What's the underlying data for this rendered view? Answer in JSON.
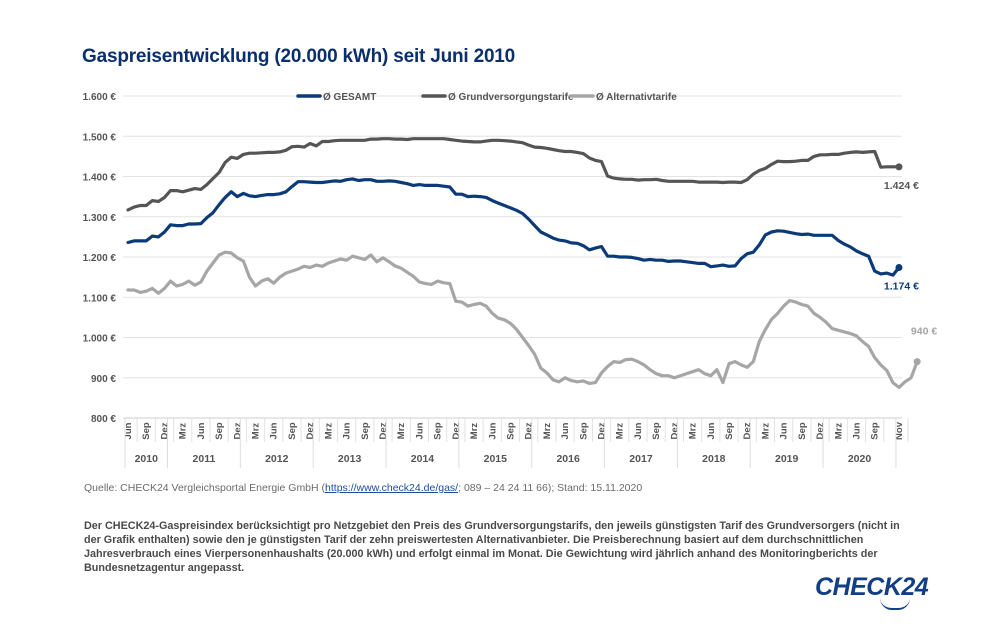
{
  "header": {
    "title": "Gaspreisentwicklung (20.000 kWh) seit Juni 2010"
  },
  "footer": {
    "source_prefix": "Quelle: CHECK24 Vergleichsportal Energie GmbH (",
    "source_link": "https://www.check24.de/gas/",
    "source_suffix": "; 089 – 24 24 11 66); Stand: 15.11.2020",
    "description": "Der CHECK24-Gaspreisindex berücksichtigt pro Netzgebiet den Preis des Grundversorgungstarifs, den jeweils günstigsten Tarif des Grundversorgers (nicht in der Grafik enthalten) sowie den je günstigsten Tarif der zehn preiswertesten Alternativanbieter. Die Preisberechnung basiert auf dem durchschnittlichen Jahresverbrauch eines Vierpersonenhaushalts (20.000 kWh) und erfolgt einmal im Monat. Die Gewichtung wird jährlich anhand des Monitoringberichts der Bundesnetzagentur angepasst.",
    "logo": "CHECK24"
  },
  "chart_data": {
    "type": "line",
    "title": "Gaspreisentwicklung (20.000 kWh) seit Juni 2010",
    "xlabel": "",
    "ylabel": "",
    "ylim": [
      800,
      1600
    ],
    "yticks": [
      800,
      900,
      1000,
      1100,
      1200,
      1300,
      1400,
      1500,
      1600
    ],
    "ytick_labels": [
      "800 €",
      "900 €",
      "1.000 €",
      "1.100 €",
      "1.200 €",
      "1.300 €",
      "1.400 €",
      "1.500 €",
      "1.600 €"
    ],
    "grid": true,
    "legend_position": "top-center",
    "x_start": "2010-06",
    "x_end": "2020-11",
    "month_tick_labels": [
      "Jun",
      "Sep",
      "Dez",
      "Mrz",
      "Jun",
      "Sep",
      "Dez",
      "Mrz",
      "Jun",
      "Sep",
      "Dez",
      "Mrz",
      "Jun",
      "Sep",
      "Dez",
      "Mrz",
      "Jun",
      "Sep",
      "Dez",
      "Mrz",
      "Jun",
      "Sep",
      "Dez",
      "Mrz",
      "Jun",
      "Sep",
      "Dez",
      "Mrz",
      "Jun",
      "Sep",
      "Dez",
      "Mrz",
      "Jun",
      "Sep",
      "Dez",
      "Mrz",
      "Jun",
      "Sep",
      "Dez",
      "Mrz",
      "Jun",
      "Sep",
      "Nov"
    ],
    "year_labels": [
      "2010",
      "2011",
      "2012",
      "2013",
      "2014",
      "2015",
      "2016",
      "2017",
      "2018",
      "2019",
      "2020"
    ],
    "series": [
      {
        "name": "Ø GESAMT",
        "color": "#0b3a78",
        "end_label": "1.174 €",
        "values": [
          1236,
          1240,
          1240,
          1240,
          1252,
          1250,
          1262,
          1280,
          1278,
          1278,
          1282,
          1282,
          1283,
          1298,
          1310,
          1330,
          1348,
          1362,
          1350,
          1358,
          1352,
          1350,
          1353,
          1355,
          1355,
          1357,
          1362,
          1375,
          1387,
          1387,
          1386,
          1385,
          1385,
          1387,
          1389,
          1388,
          1392,
          1394,
          1390,
          1392,
          1392,
          1388,
          1388,
          1389,
          1388,
          1385,
          1382,
          1378,
          1380,
          1378,
          1378,
          1378,
          1376,
          1374,
          1356,
          1356,
          1350,
          1351,
          1350,
          1348,
          1340,
          1334,
          1328,
          1322,
          1316,
          1308,
          1294,
          1278,
          1262,
          1255,
          1247,
          1242,
          1240,
          1235,
          1234,
          1228,
          1218,
          1222,
          1226,
          1202,
          1202,
          1200,
          1200,
          1199,
          1196,
          1192,
          1194,
          1192,
          1192,
          1189,
          1190,
          1190,
          1188,
          1186,
          1184,
          1184,
          1176,
          1178,
          1180,
          1177,
          1178,
          1196,
          1208,
          1212,
          1230,
          1255,
          1262,
          1265,
          1264,
          1261,
          1258,
          1256,
          1257,
          1254,
          1254,
          1254,
          1254,
          1241,
          1232,
          1225,
          1215,
          1208,
          1202,
          1165,
          1158,
          1160,
          1155,
          1174
        ]
      },
      {
        "name": "Ø Grundversorgungstarife",
        "color": "#555555",
        "end_label": "1.424 €",
        "values": [
          1317,
          1324,
          1328,
          1328,
          1340,
          1338,
          1348,
          1365,
          1365,
          1362,
          1366,
          1370,
          1368,
          1380,
          1395,
          1410,
          1435,
          1448,
          1445,
          1455,
          1458,
          1458,
          1459,
          1460,
          1460,
          1461,
          1465,
          1474,
          1475,
          1473,
          1482,
          1476,
          1487,
          1487,
          1489,
          1490,
          1490,
          1490,
          1490,
          1490,
          1493,
          1493,
          1494,
          1494,
          1493,
          1493,
          1492,
          1494,
          1494,
          1494,
          1494,
          1494,
          1494,
          1492,
          1490,
          1488,
          1487,
          1486,
          1486,
          1488,
          1490,
          1490,
          1489,
          1488,
          1486,
          1484,
          1478,
          1473,
          1472,
          1470,
          1467,
          1464,
          1462,
          1462,
          1460,
          1457,
          1446,
          1440,
          1437,
          1401,
          1396,
          1394,
          1393,
          1393,
          1391,
          1392,
          1392,
          1393,
          1390,
          1388,
          1388,
          1388,
          1388,
          1388,
          1386,
          1386,
          1386,
          1386,
          1385,
          1386,
          1386,
          1385,
          1392,
          1406,
          1415,
          1420,
          1430,
          1438,
          1437,
          1437,
          1438,
          1440,
          1440,
          1450,
          1454,
          1454,
          1455,
          1455,
          1458,
          1460,
          1461,
          1460,
          1461,
          1462,
          1423,
          1424,
          1424,
          1424
        ]
      },
      {
        "name": "Ø Alternativtarife",
        "color": "#a6a6a6",
        "end_label": "940 €",
        "values": [
          1118,
          1118,
          1112,
          1115,
          1122,
          1110,
          1122,
          1140,
          1128,
          1132,
          1140,
          1130,
          1138,
          1165,
          1185,
          1205,
          1212,
          1210,
          1198,
          1190,
          1150,
          1128,
          1140,
          1146,
          1135,
          1150,
          1160,
          1165,
          1170,
          1177,
          1174,
          1180,
          1177,
          1185,
          1190,
          1195,
          1192,
          1202,
          1198,
          1194,
          1205,
          1188,
          1198,
          1188,
          1178,
          1172,
          1162,
          1152,
          1138,
          1134,
          1132,
          1140,
          1136,
          1134,
          1090,
          1088,
          1078,
          1082,
          1085,
          1078,
          1060,
          1048,
          1044,
          1035,
          1020,
          1000,
          980,
          958,
          924,
          912,
          895,
          890,
          900,
          893,
          890,
          892,
          886,
          888,
          912,
          928,
          940,
          938,
          945,
          946,
          940,
          932,
          920,
          910,
          905,
          905,
          900,
          905,
          910,
          915,
          920,
          910,
          905,
          920,
          888,
          935,
          940,
          932,
          926,
          940,
          990,
          1020,
          1045,
          1060,
          1078,
          1092,
          1088,
          1082,
          1078,
          1060,
          1050,
          1038,
          1022,
          1018,
          1014,
          1010,
          1004,
          990,
          978,
          950,
          932,
          918,
          888,
          876,
          890,
          900,
          940
        ]
      }
    ]
  }
}
